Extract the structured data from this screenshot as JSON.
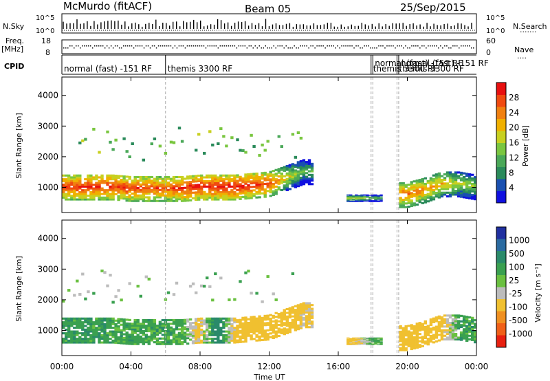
{
  "header": {
    "station": "McMurdo (fitACF)",
    "beam": "Beam 05",
    "date": "25/Sep/2015"
  },
  "status_panel": {
    "left_labels": {
      "nsky": "N.Sky",
      "freq_top": "Freq.",
      "freq_unit": "[MHz]",
      "cpid": "CPID"
    },
    "right_labels": {
      "nsearch": "N.Search",
      "nsearch_dots": "·······",
      "nave": "Nave",
      "nave_dots": "····"
    },
    "noise_ticks_left": [
      "10^5",
      "10^0"
    ],
    "noise_ticks_right": [
      "10^5",
      "10^0"
    ],
    "freq_ticks": [
      "18",
      "8"
    ],
    "nave_ticks": [
      "60",
      "0"
    ],
    "cpid_segments": [
      {
        "label": "normal (fast) -151 RF",
        "start_hour": 0.0
      },
      {
        "label": "themis 3300 RF",
        "start_hour": 6.0
      },
      {
        "label": "themis 3300 RF",
        "start_hour": 17.9
      },
      {
        "label": "normal (fast) -151 RF",
        "start_hour": 18.0
      },
      {
        "label": "themis 3300 RF",
        "start_hour": 19.4
      },
      {
        "label": "normal (fast) -151 RF",
        "start_hour": 19.5
      }
    ]
  },
  "axes": {
    "xlabel": "Time UT",
    "xticks": [
      "00:00",
      "04:00",
      "08:00",
      "12:00",
      "16:00",
      "20:00",
      "00:00"
    ],
    "ylabel": "Slant Range [km]",
    "yticks": [
      "1000",
      "2000",
      "3000",
      "4000"
    ]
  },
  "power_colorbar": {
    "label": "Power [dB]",
    "ticks": [
      "4",
      "8",
      "12",
      "16",
      "20",
      "24",
      "28"
    ],
    "colors": [
      "#1010e0",
      "#1a50b0",
      "#2a8a5a",
      "#4aa858",
      "#7ac640",
      "#c8d020",
      "#f0b000",
      "#f08010",
      "#f04a10",
      "#e81010"
    ]
  },
  "velocity_colorbar": {
    "label": "Velocity [m s⁻¹]",
    "ticks": [
      "1000",
      "500",
      "100",
      "25",
      "-25",
      "-100",
      "-500",
      "-1000"
    ],
    "colors": [
      "#2030a0",
      "#2a6aa0",
      "#2a8a6a",
      "#3aa050",
      "#6ac040",
      "#bcbcbc",
      "#f0c030",
      "#f09020",
      "#f06018",
      "#e82010"
    ]
  },
  "chart_data": [
    {
      "type": "heatmap",
      "title": "Power",
      "x": [
        0,
        1,
        2,
        3,
        4,
        5,
        6,
        7,
        8,
        9,
        10,
        11,
        12,
        13,
        14,
        15,
        16,
        17,
        18,
        19,
        20,
        21,
        22,
        23,
        24
      ],
      "xunit": "hours UT",
      "series": [
        {
          "name": "band_center_km",
          "values": [
            1000,
            1000,
            1000,
            1000,
            950,
            950,
            950,
            950,
            1000,
            1000,
            1000,
            1050,
            1100,
            1300,
            1500,
            null,
            null,
            650,
            650,
            null,
            750,
            900,
            1100,
            1100,
            1000
          ]
        },
        {
          "name": "peak_power_db",
          "values": [
            26,
            27,
            27,
            27,
            26,
            26,
            25,
            27,
            28,
            28,
            28,
            27,
            26,
            18,
            12,
            null,
            null,
            16,
            12,
            null,
            24,
            22,
            20,
            16,
            14
          ]
        }
      ],
      "ylim": [
        180,
        4600
      ],
      "clim": [
        0,
        30
      ]
    },
    {
      "type": "heatmap",
      "title": "Velocity",
      "x": [
        0,
        1,
        2,
        3,
        4,
        5,
        6,
        7,
        8,
        9,
        10,
        11,
        12,
        13,
        14,
        15,
        16,
        17,
        18,
        19,
        20,
        21,
        22,
        23,
        24
      ],
      "xunit": "hours UT",
      "series": [
        {
          "name": "band_center_km",
          "values": [
            1000,
            1000,
            1000,
            1000,
            950,
            950,
            950,
            950,
            1000,
            1000,
            1000,
            1050,
            1100,
            1300,
            1500,
            null,
            null,
            650,
            650,
            null,
            750,
            900,
            1100,
            1100,
            1000
          ]
        },
        {
          "name": "mean_velocity_ms",
          "values": [
            80,
            80,
            80,
            60,
            60,
            50,
            60,
            40,
            -150,
            200,
            -150,
            -200,
            -300,
            -250,
            -120,
            null,
            null,
            -150,
            50,
            null,
            -200,
            -250,
            -150,
            60,
            60
          ]
        }
      ],
      "ylim": [
        180,
        4600
      ],
      "clim": [
        -1200,
        1200
      ]
    }
  ]
}
